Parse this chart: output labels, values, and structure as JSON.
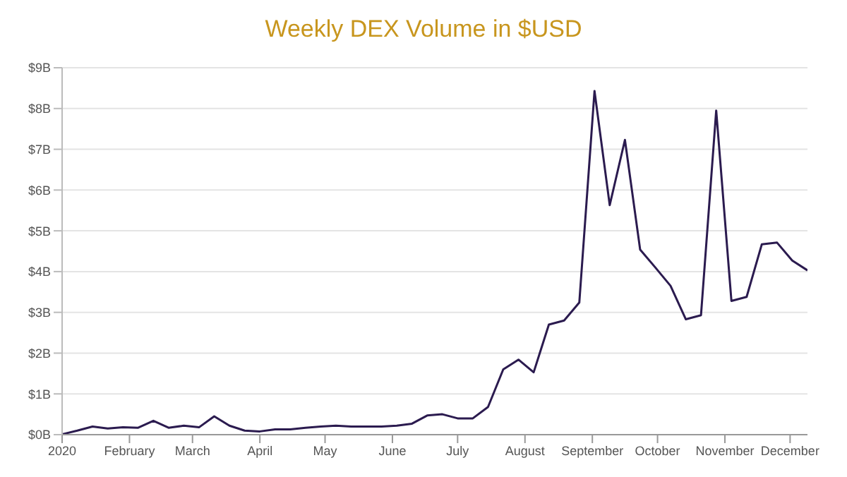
{
  "chart_data": {
    "type": "line",
    "title": "Weekly DEX Volume in $USD",
    "x": [
      "2020-01-01",
      "2020-01-08",
      "2020-01-15",
      "2020-01-22",
      "2020-01-29",
      "2020-02-05",
      "2020-02-12",
      "2020-02-19",
      "2020-02-26",
      "2020-03-04",
      "2020-03-11",
      "2020-03-18",
      "2020-03-25",
      "2020-04-01",
      "2020-04-08",
      "2020-04-15",
      "2020-04-22",
      "2020-04-29",
      "2020-05-06",
      "2020-05-13",
      "2020-05-20",
      "2020-05-27",
      "2020-06-03",
      "2020-06-10",
      "2020-06-17",
      "2020-06-24",
      "2020-07-01",
      "2020-07-08",
      "2020-07-15",
      "2020-07-22",
      "2020-07-29",
      "2020-08-05",
      "2020-08-12",
      "2020-08-19",
      "2020-08-26",
      "2020-09-02",
      "2020-09-09",
      "2020-09-16",
      "2020-09-23",
      "2020-09-30",
      "2020-10-07",
      "2020-10-14",
      "2020-10-21",
      "2020-10-28",
      "2020-11-04",
      "2020-11-11",
      "2020-11-18",
      "2020-11-25",
      "2020-12-02",
      "2020-12-09"
    ],
    "series": [
      {
        "color": "#2b1b4f",
        "values": [
          0.01,
          0.1,
          0.2,
          0.15,
          0.18,
          0.17,
          0.34,
          0.17,
          0.22,
          0.18,
          0.45,
          0.22,
          0.1,
          0.08,
          0.13,
          0.13,
          0.17,
          0.2,
          0.22,
          0.2,
          0.2,
          0.2,
          0.22,
          0.27,
          0.47,
          0.5,
          0.4,
          0.4,
          0.68,
          1.6,
          1.84,
          1.53,
          2.7,
          2.8,
          3.24,
          8.43,
          5.63,
          7.23,
          4.54,
          4.1,
          3.65,
          2.83,
          2.93,
          7.95,
          3.28,
          3.38,
          4.67,
          4.71,
          4.27,
          4.03
        ]
      }
    ],
    "xlim": [
      "2020-01-01",
      "2020-12-09"
    ],
    "xticks": [
      {
        "value": "2020-01-01",
        "label": "2020"
      },
      {
        "value": "2020-02-01",
        "label": "February"
      },
      {
        "value": "2020-03-01",
        "label": "March"
      },
      {
        "value": "2020-04-01",
        "label": "April"
      },
      {
        "value": "2020-05-01",
        "label": "May"
      },
      {
        "value": "2020-06-01",
        "label": "June"
      },
      {
        "value": "2020-07-01",
        "label": "July"
      },
      {
        "value": "2020-08-01",
        "label": "August"
      },
      {
        "value": "2020-09-01",
        "label": "September"
      },
      {
        "value": "2020-10-01",
        "label": "October"
      },
      {
        "value": "2020-11-01",
        "label": "November"
      },
      {
        "value": "2020-12-01",
        "label": "December"
      }
    ],
    "ylim": [
      0,
      9
    ],
    "yticks": [
      {
        "value": 0,
        "label": "$0B"
      },
      {
        "value": 1,
        "label": "$1B"
      },
      {
        "value": 2,
        "label": "$2B"
      },
      {
        "value": 3,
        "label": "$3B"
      },
      {
        "value": 4,
        "label": "$4B"
      },
      {
        "value": 5,
        "label": "$5B"
      },
      {
        "value": 6,
        "label": "$6B"
      },
      {
        "value": 7,
        "label": "$7B"
      },
      {
        "value": 8,
        "label": "$8B"
      },
      {
        "value": 9,
        "label": "$9B"
      }
    ],
    "grid": "y",
    "legend": false,
    "marker": "none",
    "line_style": "solid"
  }
}
